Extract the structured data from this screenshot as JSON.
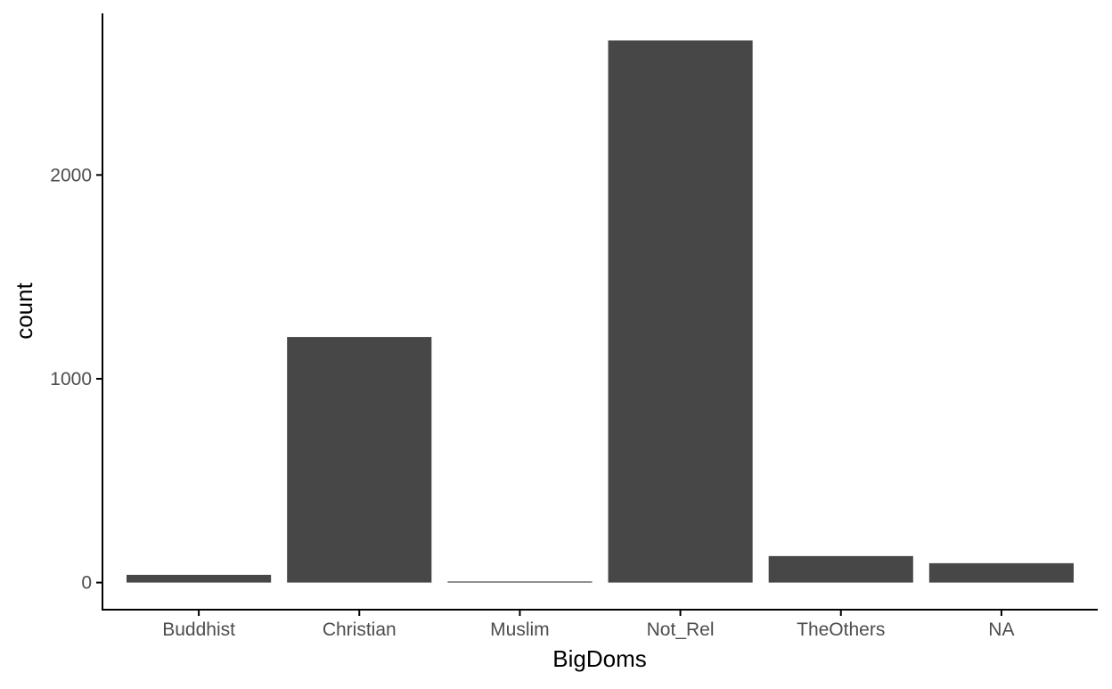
{
  "chart_data": {
    "type": "bar",
    "categories": [
      "Buddhist",
      "Christian",
      "Muslim",
      "Not_Rel",
      "TheOthers",
      "NA"
    ],
    "values": [
      38,
      1205,
      5,
      2660,
      130,
      95
    ],
    "xlabel": "BigDoms",
    "ylabel": "count",
    "ylim": [
      -133,
      2793
    ],
    "yticks": [
      0,
      1000,
      2000
    ],
    "ytick_labels": [
      "0",
      "1000",
      "2000"
    ],
    "grid": false,
    "legend": "none",
    "bar_color": "#474747",
    "axis_color": "#000000",
    "tick_label_color": "#4d4d4d"
  }
}
